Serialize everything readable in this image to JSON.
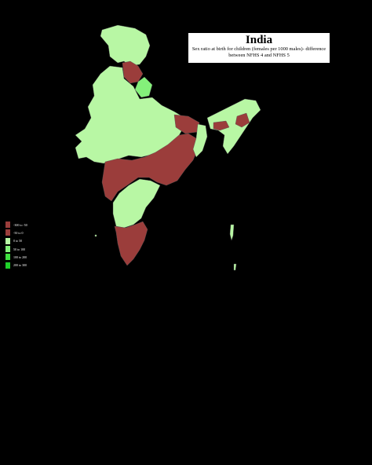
{
  "map": {
    "title": "India",
    "subtitle": "Sex ratio at birth for children (females per 1000 males)- difference between NFHS 4 and NFHS 5",
    "colors": {
      "background": "#000000",
      "decrease": "#9b3d3b",
      "slight_increase": "#b8f7a4",
      "moderate_increase": "#84f07a",
      "strong_increase": "#3fe03f",
      "top_increase": "#1fcf2a",
      "border": "#555555"
    }
  },
  "legend": {
    "items": [
      {
        "label": "-300 to -50",
        "color": "#9b3d3b"
      },
      {
        "label": "-50 to 0",
        "color": "#9b3d3b"
      },
      {
        "label": "0 to 50",
        "color": "#b8f7a4"
      },
      {
        "label": "50 to 100",
        "color": "#84f07a"
      },
      {
        "label": "100 to 200",
        "color": "#3fe03f"
      },
      {
        "label": "200 to 300",
        "color": "#1fcf2a"
      }
    ]
  }
}
